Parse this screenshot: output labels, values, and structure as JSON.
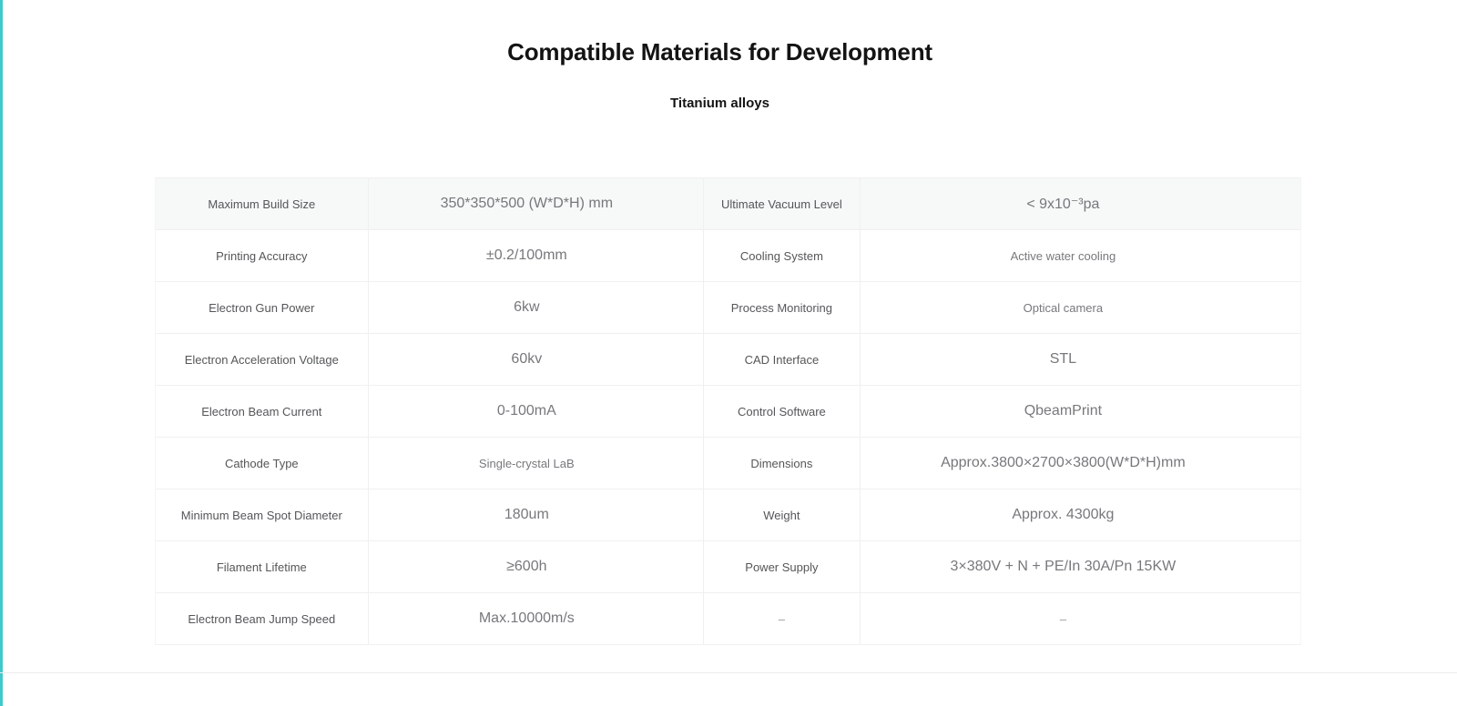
{
  "page": {
    "title": "Compatible Materials for Development",
    "subtitle": "Titanium alloys",
    "accent_color": "#41c8cd"
  },
  "table": {
    "rows": [
      {
        "left_label": "Maximum Build Size",
        "left_value": "350*350*500 (W*D*H) mm",
        "right_label": "Ultimate Vacuum Level",
        "right_value": "< 9x10⁻³pa"
      },
      {
        "left_label": "Printing Accuracy",
        "left_value": "±0.2/100mm",
        "right_label": "Cooling System",
        "right_value": "Active water cooling"
      },
      {
        "left_label": "Electron Gun Power",
        "left_value": "6kw",
        "right_label": "Process Monitoring",
        "right_value": "Optical camera"
      },
      {
        "left_label": "Electron Acceleration Voltage",
        "left_value": "60kv",
        "right_label": "CAD Interface",
        "right_value": "STL"
      },
      {
        "left_label": "Electron Beam Current",
        "left_value": "0-100mA",
        "right_label": "Control Software",
        "right_value": "QbeamPrint"
      },
      {
        "left_label": "Cathode Type",
        "left_value": "Single-crystal LaB",
        "right_label": "Dimensions",
        "right_value": "Approx.3800×2700×3800(W*D*H)mm"
      },
      {
        "left_label": "Minimum Beam Spot Diameter",
        "left_value": "180um",
        "right_label": "Weight",
        "right_value": "Approx. 4300kg"
      },
      {
        "left_label": "Filament Lifetime",
        "left_value": "≥600h",
        "right_label": "Power Supply",
        "right_value": "3×380V + N + PE/In 30A/Pn 15KW"
      },
      {
        "left_label": "Electron Beam Jump Speed",
        "left_value": "Max.10000m/s",
        "right_label": "–",
        "right_value": "–"
      }
    ]
  }
}
